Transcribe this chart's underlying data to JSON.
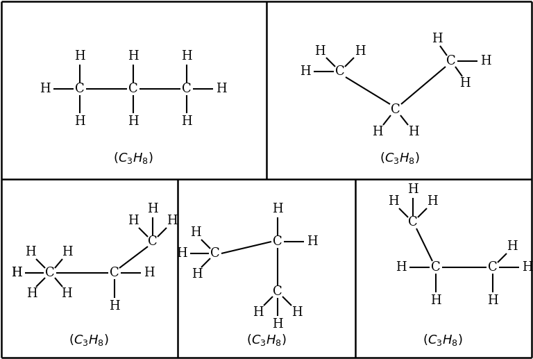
{
  "bg_color": "#ffffff",
  "line_color": "#000000",
  "text_color": "#000000",
  "fig_width": 7.68,
  "fig_height": 5.17,
  "font_size_atom": 13,
  "font_size_formula": 12,
  "font_size_subscript": 9
}
